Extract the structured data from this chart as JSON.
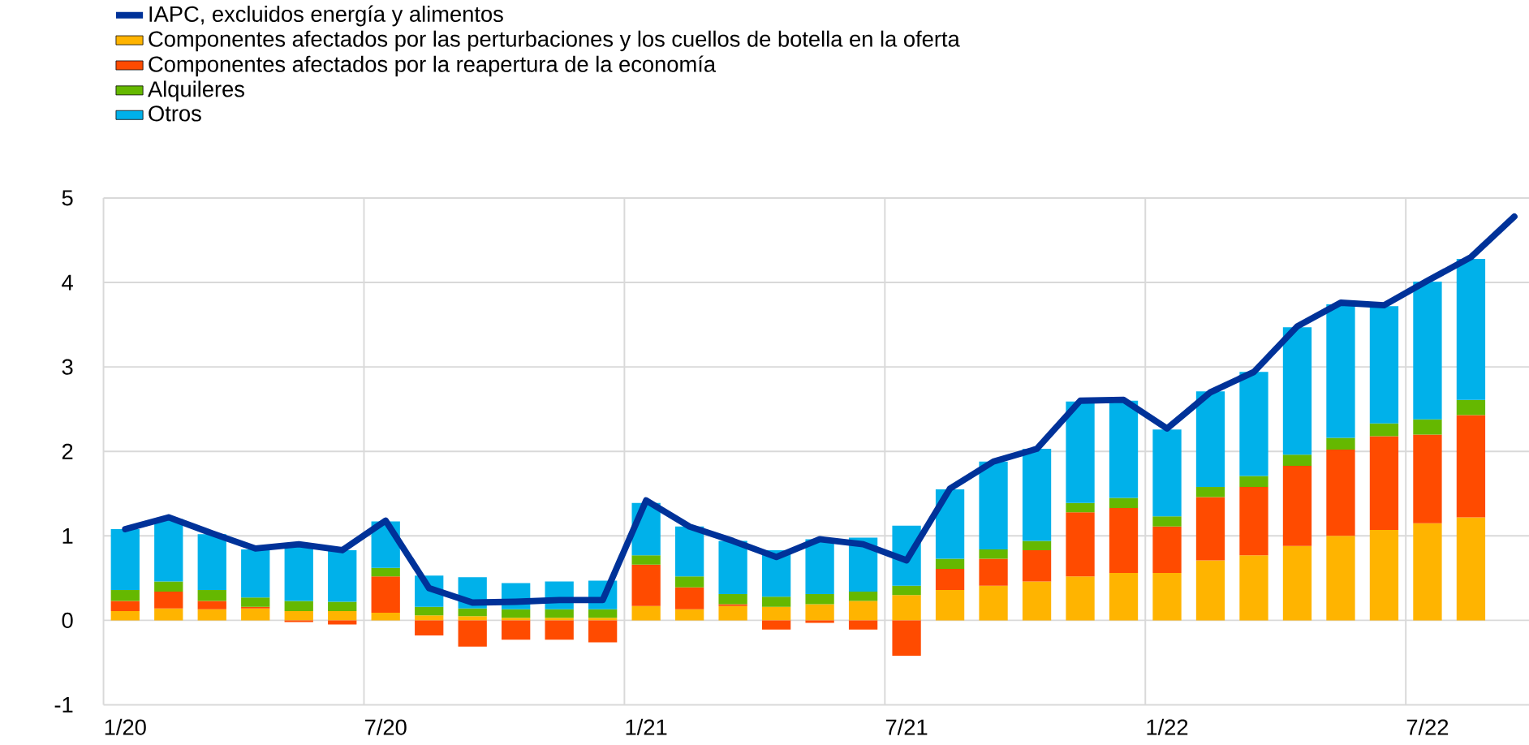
{
  "chart_data": {
    "type": "bar",
    "stacked": true,
    "grid": true,
    "legend": "top left",
    "categories": [
      "1/20",
      null,
      null,
      null,
      null,
      null,
      "7/20",
      null,
      null,
      null,
      null,
      null,
      "1/21",
      null,
      null,
      null,
      null,
      null,
      "7/21",
      null,
      null,
      null,
      null,
      null,
      "1/22",
      null,
      null,
      null,
      null,
      null,
      "7/22",
      null,
      null
    ],
    "ylim": [
      -1,
      5
    ],
    "yticks": [
      -1,
      0,
      1,
      2,
      3,
      4,
      5
    ],
    "series": [
      {
        "name": "IAPC, excluidos energía y alimentos",
        "type": "line",
        "color": "#003299",
        "values": [
          1.08,
          1.22,
          1.03,
          0.85,
          0.9,
          0.83,
          1.18,
          0.38,
          0.21,
          0.22,
          0.24,
          0.24,
          1.42,
          1.11,
          0.94,
          0.75,
          0.96,
          0.9,
          0.71,
          1.56,
          1.88,
          2.03,
          2.6,
          2.61,
          2.27,
          2.7,
          2.94,
          3.48,
          3.76,
          3.73,
          4.02,
          4.3,
          4.78
        ]
      },
      {
        "name": "Componentes afectados por las perturbaciones y los cuellos de botella en la oferta",
        "color": "#ffb400",
        "values": [
          0.11,
          0.14,
          0.13,
          0.14,
          0.11,
          0.11,
          0.09,
          0.06,
          0.05,
          0.03,
          0.03,
          0.03,
          0.17,
          0.13,
          0.17,
          0.16,
          0.19,
          0.23,
          0.3,
          0.36,
          0.41,
          0.46,
          0.52,
          0.56,
          0.56,
          0.71,
          0.77,
          0.88,
          1.0,
          1.07,
          1.15,
          1.22,
          null
        ]
      },
      {
        "name": "Componentes afectados por la reapertura de la economía",
        "color": "#ff4b00",
        "values": [
          0.12,
          0.2,
          0.1,
          0.02,
          -0.02,
          -0.05,
          0.43,
          -0.18,
          -0.31,
          -0.23,
          -0.23,
          -0.26,
          0.49,
          0.26,
          0.02,
          -0.11,
          -0.03,
          -0.11,
          -0.42,
          0.25,
          0.32,
          0.37,
          0.76,
          0.77,
          0.55,
          0.75,
          0.81,
          0.95,
          1.02,
          1.11,
          1.05,
          1.21,
          null
        ]
      },
      {
        "name": "Alquileres",
        "color": "#65b800",
        "values": [
          0.13,
          0.12,
          0.13,
          0.11,
          0.12,
          0.11,
          0.1,
          0.1,
          0.09,
          0.1,
          0.1,
          0.1,
          0.11,
          0.13,
          0.12,
          0.12,
          0.12,
          0.11,
          0.11,
          0.12,
          0.11,
          0.11,
          0.11,
          0.12,
          0.12,
          0.12,
          0.13,
          0.13,
          0.14,
          0.15,
          0.18,
          0.18,
          null
        ]
      },
      {
        "name": "Otros",
        "color": "#00b1ea",
        "values": [
          0.72,
          0.74,
          0.66,
          0.57,
          0.66,
          0.61,
          0.55,
          0.37,
          0.37,
          0.31,
          0.33,
          0.34,
          0.62,
          0.59,
          0.63,
          0.55,
          0.65,
          0.64,
          0.71,
          0.82,
          1.04,
          1.09,
          1.2,
          1.15,
          1.03,
          1.13,
          1.23,
          1.51,
          1.58,
          1.39,
          1.63,
          1.67,
          null
        ]
      }
    ]
  }
}
